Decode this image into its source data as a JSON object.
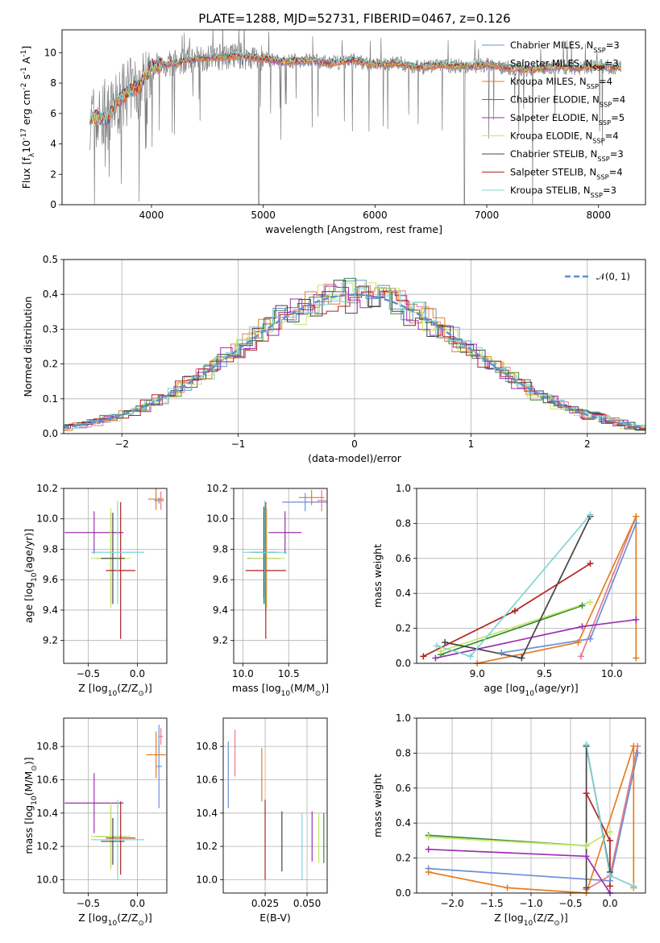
{
  "figure_title": "PLATE=1288, MJD=52731, FIBERID=0467, z=0.126",
  "series": [
    {
      "name": "Chabrier MILES, N$_{SSP}$=3",
      "label_main": "Chabrier MILES, N",
      "sub": "SSP",
      "suffix": "=3",
      "color": "#6b8fd6"
    },
    {
      "name": "Salpeter MILES, N$_{SSP}$=3",
      "label_main": "Salpeter MILES, N",
      "sub": "SSP",
      "suffix": "=3",
      "color": "#e07b8b"
    },
    {
      "name": "Kroupa MILES, N$_{SSP}$=4",
      "label_main": "Kroupa MILES, N",
      "sub": "SSP",
      "suffix": "=4",
      "color": "#e67e22"
    },
    {
      "name": "Chabrier ELODIE, N$_{SSP}$=4",
      "label_main": "Chabrier ELODIE, N",
      "sub": "SSP",
      "suffix": "=4",
      "color": "#3a8a3a"
    },
    {
      "name": "Salpeter ELODIE, N$_{SSP}$=5",
      "label_main": "Salpeter ELODIE, N",
      "sub": "SSP",
      "suffix": "=5",
      "color": "#9b30b0"
    },
    {
      "name": "Kroupa ELODIE, N$_{SSP}$=4",
      "label_main": "Kroupa ELODIE, N",
      "sub": "SSP",
      "suffix": "=4",
      "color": "#c8e66a"
    },
    {
      "name": "Chabrier STELIB, N$_{SSP}$=3",
      "label_main": "Chabrier STELIB, N",
      "sub": "SSP",
      "suffix": "=3",
      "color": "#444444"
    },
    {
      "name": "Salpeter STELIB, N$_{SSP}$=4",
      "label_main": "Salpeter STELIB, N",
      "sub": "SSP",
      "suffix": "=4",
      "color": "#b22222"
    },
    {
      "name": "Kroupa STELIB, N$_{SSP}$=3",
      "label_main": "Kroupa STELIB, N",
      "sub": "SSP",
      "suffix": "=3",
      "color": "#7fd4d4"
    }
  ],
  "chart_data": [
    {
      "id": "spectrum",
      "type": "line",
      "xlabel": "wavelength [Angstrom, rest frame]",
      "ylabel": "Flux [f$_\\lambda$10$^{-17}$ erg cm$^{-2}$ s$^{-1}$ A$^{-1}$]",
      "xlim": [
        3200,
        8420
      ],
      "ylim": [
        0,
        11.5
      ],
      "xticks": [
        4000,
        5000,
        6000,
        7000,
        8000
      ],
      "yticks": [
        0,
        2,
        4,
        6,
        8,
        10
      ],
      "data_color": "#808080",
      "continuum": [
        [
          3450,
          5.8
        ],
        [
          3600,
          5.6
        ],
        [
          3700,
          6.8
        ],
        [
          3800,
          7.5
        ],
        [
          3900,
          7.8
        ],
        [
          4000,
          9.1
        ],
        [
          4200,
          9.3
        ],
        [
          4400,
          9.6
        ],
        [
          4600,
          9.7
        ],
        [
          4800,
          9.8
        ],
        [
          5000,
          9.6
        ],
        [
          5200,
          9.4
        ],
        [
          5400,
          9.5
        ],
        [
          5600,
          9.3
        ],
        [
          5800,
          9.5
        ],
        [
          6000,
          9.2
        ],
        [
          6200,
          9.3
        ],
        [
          6400,
          9.0
        ],
        [
          6600,
          9.2
        ],
        [
          6800,
          9.1
        ],
        [
          7000,
          9.2
        ],
        [
          7200,
          9.0
        ],
        [
          7400,
          8.9
        ],
        [
          7600,
          9.1
        ],
        [
          7800,
          9.0
        ],
        [
          8000,
          9.1
        ],
        [
          8200,
          9.0
        ]
      ],
      "spikes": [
        [
          3490,
          0
        ],
        [
          3890,
          0.2
        ],
        [
          4960,
          0
        ],
        [
          6800,
          0
        ],
        [
          7410,
          0
        ]
      ],
      "grid": false,
      "legend": "right"
    },
    {
      "id": "residuals",
      "type": "histogram",
      "xlabel": "(data-model)/error",
      "ylabel": "Normed distribution",
      "xlim": [
        -2.5,
        2.5
      ],
      "ylim": [
        0,
        0.5
      ],
      "xticks": [
        -2,
        -1,
        0,
        1,
        2
      ],
      "yticks": [
        0.0,
        0.1,
        0.2,
        0.3,
        0.4,
        0.5
      ],
      "bin_width": 0.1,
      "gaussian": {
        "name": "$\\mathcal{N}(0,1)$",
        "label": "𝒩(0, 1)",
        "mean": 0,
        "sigma": 1,
        "color": "#5b8fd6"
      },
      "grid": true,
      "legend": "top-right"
    },
    {
      "id": "age_vs_Z",
      "type": "errorbar",
      "xlabel": "Z [log$_{10}$(Z/Z$_\\odot$)]",
      "ylabel": "age  [log$_{10}$(age/yr)]",
      "xlim": [
        -0.75,
        0.3
      ],
      "ylim": [
        9.05,
        10.2
      ],
      "xticks": [
        -0.5,
        0.0
      ],
      "yticks": [
        9.2,
        9.4,
        9.6,
        9.8,
        10.0,
        10.2
      ],
      "points": [
        {
          "s": 0,
          "x": 0.22,
          "xe": 0.05,
          "y": 10.12,
          "ye": 0.02
        },
        {
          "s": 1,
          "x": 0.24,
          "xe": 0.02,
          "y": 10.12,
          "ye": 0.06
        },
        {
          "s": 2,
          "x": 0.19,
          "xe": 0.08,
          "y": 10.13,
          "ye": 0.07
        },
        {
          "s": 3,
          "x": -0.27,
          "xe": 0.15,
          "y": 9.74,
          "ye": 0.3
        },
        {
          "s": 4,
          "x": -0.44,
          "xe": 0.3,
          "y": 9.91,
          "ye": 0.14
        },
        {
          "s": 5,
          "x": -0.27,
          "xe": 0.2,
          "y": 9.74,
          "ye": 0.33
        },
        {
          "s": 6,
          "x": -0.25,
          "xe": 0.12,
          "y": 9.74,
          "ye": 0.3
        },
        {
          "s": 7,
          "x": -0.17,
          "xe": 0.15,
          "y": 9.66,
          "ye": 0.45
        },
        {
          "s": 8,
          "x": -0.2,
          "xe": 0.27,
          "y": 9.78,
          "ye": 0.34
        }
      ]
    },
    {
      "id": "age_vs_mass",
      "type": "errorbar",
      "xlabel": "mass [log$_{10}$(M/M$_\\odot$)]",
      "ylabel": "",
      "xlim": [
        9.9,
        10.92
      ],
      "ylim": [
        9.05,
        10.2
      ],
      "xticks": [
        10.0,
        10.5
      ],
      "yticks": [
        9.2,
        9.4,
        9.6,
        9.8,
        10.0,
        10.2
      ],
      "points": [
        {
          "s": 0,
          "x": 10.68,
          "xe": 0.25,
          "y": 10.11,
          "ye": 0.06
        },
        {
          "s": 1,
          "x": 10.86,
          "xe": 0.05,
          "y": 10.12,
          "ye": 0.07
        },
        {
          "s": 2,
          "x": 10.75,
          "xe": 0.14,
          "y": 10.14,
          "ye": 0.05
        },
        {
          "s": 3,
          "x": 10.23,
          "xe": 0.18,
          "y": 9.74,
          "ye": 0.3
        },
        {
          "s": 4,
          "x": 10.46,
          "xe": 0.18,
          "y": 9.91,
          "ye": 0.14
        },
        {
          "s": 5,
          "x": 10.26,
          "xe": 0.2,
          "y": 9.74,
          "ye": 0.33
        },
        {
          "s": 6,
          "x": 10.23,
          "xe": 0.14,
          "y": 9.78,
          "ye": 0.3
        },
        {
          "s": 7,
          "x": 10.25,
          "xe": 0.22,
          "y": 9.66,
          "ye": 0.45
        },
        {
          "s": 8,
          "x": 10.24,
          "xe": 0.24,
          "y": 9.78,
          "ye": 0.34
        }
      ]
    },
    {
      "id": "weight_vs_age",
      "type": "line",
      "xlabel": "age  [log$_{10}$(age/yr)]",
      "ylabel": "mass weight",
      "xlim": [
        8.55,
        10.25
      ],
      "ylim": [
        0,
        1
      ],
      "xticks": [
        9.0,
        9.5,
        10.0
      ],
      "yticks": [
        0.0,
        0.2,
        0.4,
        0.6,
        0.8,
        1.0
      ],
      "series": [
        {
          "s": 0,
          "x": [
            9.18,
            9.84,
            10.18
          ],
          "y": [
            0.06,
            0.14,
            0.8
          ]
        },
        {
          "s": 1,
          "x": [
            9.77,
            10.18
          ],
          "y": [
            0.04,
            0.84
          ]
        },
        {
          "s": 2,
          "x": [
            9.0,
            9.75,
            10.18,
            10.18
          ],
          "y": [
            0.0,
            0.12,
            0.84,
            0.03
          ]
        },
        {
          "s": 3,
          "x": [
            8.73,
            9.78
          ],
          "y": [
            0.05,
            0.33
          ]
        },
        {
          "s": 4,
          "x": [
            8.69,
            9.78,
            10.18
          ],
          "y": [
            0.03,
            0.21,
            0.25
          ]
        },
        {
          "s": 5,
          "x": [
            8.73,
            9.84
          ],
          "y": [
            0.07,
            0.35
          ]
        },
        {
          "s": 6,
          "x": [
            8.76,
            9.33,
            9.84
          ],
          "y": [
            0.12,
            0.03,
            0.84
          ]
        },
        {
          "s": 7,
          "x": [
            8.6,
            9.28,
            9.84
          ],
          "y": [
            0.04,
            0.3,
            0.57
          ]
        },
        {
          "s": 8,
          "x": [
            8.7,
            8.95,
            9.84
          ],
          "y": [
            0.1,
            0.04,
            0.85
          ]
        }
      ]
    },
    {
      "id": "mass_vs_Z",
      "type": "errorbar",
      "xlabel": "Z [log$_{10}$(Z/Z$_\\odot$)]",
      "ylabel": "mass [log$_{10}$(M/M$_\\odot$)]",
      "xlim": [
        -0.75,
        0.3
      ],
      "ylim": [
        9.92,
        10.97
      ],
      "xticks": [
        -0.5,
        0.0
      ],
      "yticks": [
        10.0,
        10.2,
        10.4,
        10.6,
        10.8
      ],
      "points": [
        {
          "s": 0,
          "x": 0.22,
          "xe": 0.03,
          "y": 10.68,
          "ye": 0.25
        },
        {
          "s": 1,
          "x": 0.24,
          "xe": 0.02,
          "y": 10.86,
          "ye": 0.05
        },
        {
          "s": 2,
          "x": 0.19,
          "xe": 0.1,
          "y": 10.75,
          "ye": 0.14
        },
        {
          "s": 3,
          "x": -0.27,
          "xe": 0.15,
          "y": 10.26,
          "ye": 0.18
        },
        {
          "s": 4,
          "x": -0.44,
          "xe": 0.3,
          "y": 10.46,
          "ye": 0.18
        },
        {
          "s": 5,
          "x": -0.27,
          "xe": 0.2,
          "y": 10.26,
          "ye": 0.2
        },
        {
          "s": 6,
          "x": -0.25,
          "xe": 0.12,
          "y": 10.23,
          "ye": 0.14
        },
        {
          "s": 7,
          "x": -0.17,
          "xe": 0.15,
          "y": 10.25,
          "ye": 0.22
        },
        {
          "s": 8,
          "x": -0.2,
          "xe": 0.27,
          "y": 10.24,
          "ye": 0.24
        }
      ]
    },
    {
      "id": "mass_vs_ebv",
      "type": "errorbar",
      "xlabel": "E(B-V)",
      "ylabel": "",
      "xlim": [
        0.0,
        0.062
      ],
      "ylim": [
        9.92,
        10.97
      ],
      "xticks": [
        0.025,
        0.05
      ],
      "yticks": [
        10.0,
        10.2,
        10.4,
        10.6,
        10.8
      ],
      "points": [
        {
          "s": 0,
          "x": 0.003,
          "y": 10.63,
          "ye": 0.2
        },
        {
          "s": 1,
          "x": 0.007,
          "y": 10.76,
          "ye": 0.14
        },
        {
          "s": 2,
          "x": 0.023,
          "y": 10.63,
          "ye": 0.16
        },
        {
          "s": 7,
          "x": 0.025,
          "y": 10.24,
          "ye": 0.24
        },
        {
          "s": 6,
          "x": 0.035,
          "y": 10.23,
          "ye": 0.18
        },
        {
          "s": 8,
          "x": 0.047,
          "y": 10.2,
          "ye": 0.2
        },
        {
          "s": 4,
          "x": 0.053,
          "y": 10.26,
          "ye": 0.15
        },
        {
          "s": 5,
          "x": 0.057,
          "y": 10.25,
          "ye": 0.15
        },
        {
          "s": 3,
          "x": 0.06,
          "y": 10.25,
          "ye": 0.15
        }
      ]
    },
    {
      "id": "weight_vs_Z",
      "type": "line",
      "xlabel": "Z [log$_{10}$(Z/Z$_\\odot$)]",
      "ylabel": "mass weight",
      "xlim": [
        -2.45,
        0.45
      ],
      "ylim": [
        0,
        1
      ],
      "xticks": [
        -2.0,
        -1.5,
        -1.0,
        -0.5,
        0.0
      ],
      "yticks": [
        0.0,
        0.2,
        0.4,
        0.6,
        0.8,
        1.0
      ],
      "series": [
        {
          "s": 0,
          "x": [
            -2.3,
            0.0,
            0.35
          ],
          "y": [
            0.14,
            0.07,
            0.8
          ]
        },
        {
          "s": 1,
          "x": [
            -0.3,
            0.0,
            0.35
          ],
          "y": [
            0.02,
            0.1,
            0.84
          ]
        },
        {
          "s": 2,
          "x": [
            -2.3,
            -1.3,
            -0.3,
            0.3,
            0.3
          ],
          "y": [
            0.12,
            0.03,
            0.0,
            0.84,
            0.03
          ]
        },
        {
          "s": 3,
          "x": [
            -2.3,
            -0.3
          ],
          "y": [
            0.33,
            0.27
          ]
        },
        {
          "s": 4,
          "x": [
            -2.3,
            -0.3,
            0.0
          ],
          "y": [
            0.25,
            0.21,
            0.0
          ]
        },
        {
          "s": 5,
          "x": [
            -2.3,
            -0.3,
            0.0
          ],
          "y": [
            0.32,
            0.27,
            0.35
          ]
        },
        {
          "s": 6,
          "x": [
            -0.3,
            -0.3,
            0.0
          ],
          "y": [
            0.03,
            0.84,
            0.12
          ]
        },
        {
          "s": 7,
          "x": [
            -0.3,
            0.0,
            0.0
          ],
          "y": [
            0.57,
            0.3,
            0.04
          ]
        },
        {
          "s": 8,
          "x": [
            -0.3,
            0.0,
            0.3
          ],
          "y": [
            0.85,
            0.1,
            0.04
          ]
        }
      ]
    }
  ]
}
